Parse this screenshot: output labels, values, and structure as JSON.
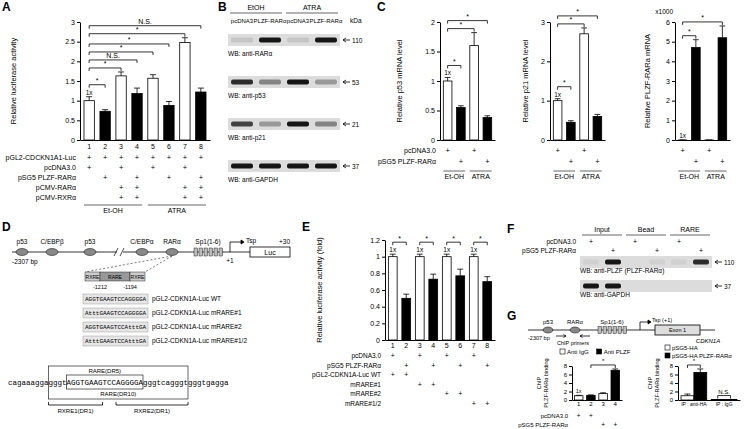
{
  "chart_data": [
    {
      "panel": "A",
      "type": "bar",
      "ylabel": "Relative luciferase activity",
      "ylim": [
        0,
        3
      ],
      "yticks": [
        0,
        0.5,
        1,
        1.5,
        2,
        2.5,
        3
      ],
      "categories": [
        "1",
        "2",
        "3",
        "4",
        "5",
        "6",
        "7",
        "8"
      ],
      "series": [
        {
          "values": [
            1,
            0.73,
            1.63,
            1.18,
            1.57,
            0.88,
            2.48,
            1.22
          ],
          "errors": [
            0.1,
            0.04,
            0.1,
            0.14,
            0.09,
            0.1,
            0.12,
            0.1
          ],
          "colors": [
            "#ffffff",
            "#000000",
            "#ffffff",
            "#000000",
            "#ffffff",
            "#000000",
            "#ffffff",
            "#000000"
          ],
          "value_labels": [
            "1x",
            null,
            null,
            null,
            null,
            null,
            null,
            null
          ]
        }
      ],
      "data_labels": true,
      "comparisons": [
        {
          "from": 0,
          "to": 1,
          "label": "*"
        },
        {
          "from": 0,
          "to": 2,
          "label": "*"
        },
        {
          "from": 0,
          "to": 3,
          "label": "N.S."
        },
        {
          "from": 0,
          "to": 4,
          "label": "*"
        },
        {
          "from": 0,
          "to": 5,
          "label": "*"
        },
        {
          "from": 0,
          "to": 6,
          "label": "*"
        },
        {
          "from": 0,
          "to": 7,
          "label": "N.S."
        }
      ],
      "conditions": [
        {
          "label": "pGL2-CDCKN1A1-Luc",
          "marks": [
            "+",
            "+",
            "+",
            "+",
            "+",
            "+",
            "+",
            "+"
          ]
        },
        {
          "label": "pcDNA3.0",
          "marks": [
            "+",
            null,
            "+",
            null,
            "+",
            null,
            "+",
            null
          ]
        },
        {
          "label": "pSG5 PLZF-RARα",
          "marks": [
            null,
            "+",
            null,
            "+",
            null,
            "+",
            null,
            "+"
          ]
        },
        {
          "label": "pCMV-RARα",
          "marks": [
            null,
            null,
            "+",
            "+",
            null,
            null,
            "+",
            "+"
          ]
        },
        {
          "label": "pCMV-RXRα",
          "marks": [
            null,
            null,
            "+",
            "+",
            null,
            null,
            "+",
            "+"
          ]
        }
      ],
      "groups": [
        {
          "label": "Et-OH",
          "from": 0,
          "to": 3
        },
        {
          "label": "ATRA",
          "from": 4,
          "to": 7
        }
      ]
    },
    {
      "panel": "C",
      "type": "bar",
      "ylabel": "Relative p53 mRNA level",
      "ylim": [
        0,
        2
      ],
      "yticks": [
        0,
        0.5,
        1,
        1.5,
        2
      ],
      "categories": [
        null,
        null,
        null,
        null
      ],
      "series": [
        {
          "values": [
            1,
            0.55,
            1.6,
            0.38
          ],
          "errors": [
            0.06,
            0.03,
            0.22,
            0.03
          ],
          "colors": [
            "#ffffff",
            "#000000",
            "#ffffff",
            "#000000"
          ],
          "value_labels": [
            "1x",
            null,
            null,
            null
          ]
        }
      ],
      "data_labels": true,
      "comparisons": [
        {
          "from": 0,
          "to": 1,
          "label": "*"
        },
        {
          "from": 0,
          "to": 2,
          "label": "*"
        },
        {
          "from": 0,
          "to": 3,
          "label": "*"
        }
      ],
      "conditions": [
        {
          "label": "pcDNA3.0",
          "marks": [
            "+",
            null,
            "+",
            null
          ]
        },
        {
          "label": "pSG5 PLZF-RARα",
          "marks": [
            null,
            "+",
            null,
            "+"
          ]
        }
      ],
      "groups": [
        {
          "label": "Et-OH",
          "from": 0,
          "to": 1
        },
        {
          "label": "ATRA",
          "from": 2,
          "to": 3
        }
      ]
    },
    {
      "type": "bar",
      "ylabel": "Relative p21 mRNA level",
      "ylim": [
        0,
        3
      ],
      "yticks": [
        0,
        1,
        2,
        3
      ],
      "categories": [
        null,
        null,
        null,
        null
      ],
      "series": [
        {
          "values": [
            1,
            0.45,
            2.7,
            0.6
          ],
          "errors": [
            0.05,
            0.04,
            0.15,
            0.05
          ],
          "colors": [
            "#ffffff",
            "#000000",
            "#ffffff",
            "#000000"
          ],
          "value_labels": [
            "1x",
            null,
            null,
            null
          ]
        }
      ],
      "data_labels": true,
      "comparisons": [
        {
          "from": 0,
          "to": 1,
          "label": "*"
        },
        {
          "from": 0,
          "to": 2,
          "label": "*"
        },
        {
          "from": 0,
          "to": 3,
          "label": "*"
        }
      ],
      "conditions": [
        {
          "marks": [
            "+",
            null,
            "+",
            null
          ]
        },
        {
          "marks": [
            null,
            "+",
            null,
            "+"
          ]
        }
      ],
      "groups": [
        {
          "label": "Et-OH",
          "from": 0,
          "to": 1
        },
        {
          "label": "ATRA",
          "from": 2,
          "to": 3
        }
      ]
    },
    {
      "type": "bar",
      "ylabel": "Relative PLZF-RARa mRNA",
      "unit_note": "x1000",
      "ylim": [
        0,
        6
      ],
      "yticks": [
        0,
        1,
        2,
        3,
        4,
        5,
        6
      ],
      "categories": [
        null,
        null,
        null,
        null
      ],
      "series": [
        {
          "values": [
            0.001,
            4.7,
            0.001,
            5.2
          ],
          "errors": [
            0,
            0.4,
            0,
            0.6
          ],
          "colors": [
            "#ffffff",
            "#000000",
            "#ffffff",
            "#000000"
          ],
          "value_labels": [
            "1x",
            null,
            null,
            null
          ]
        }
      ],
      "data_labels": true,
      "comparisons": [
        {
          "from": 0,
          "to": 1,
          "label": "*"
        },
        {
          "from": 0,
          "to": 3,
          "label": "*"
        }
      ],
      "conditions": [
        {
          "marks": [
            "+",
            null,
            "+",
            null
          ]
        },
        {
          "marks": [
            null,
            "+",
            null,
            "+"
          ]
        }
      ],
      "groups": [
        {
          "label": "Et-OH",
          "from": 0,
          "to": 1
        },
        {
          "label": "ATRA",
          "from": 2,
          "to": 3
        }
      ]
    },
    {
      "panel": "E",
      "type": "bar",
      "ylabel": "Relative luciferase activity (fold)",
      "ylim": [
        0,
        1.2
      ],
      "yticks": [
        0,
        0.2,
        0.4,
        0.6,
        0.8,
        1,
        1.2
      ],
      "categories": [
        "1",
        "2",
        "3",
        "4",
        "5",
        "6",
        "7",
        "8"
      ],
      "series": [
        {
          "values": [
            1,
            0.5,
            1,
            0.73,
            1,
            0.77,
            1,
            0.7
          ],
          "errors": [
            0.03,
            0.05,
            0.03,
            0.06,
            0.03,
            0.08,
            0.03,
            0.06
          ],
          "colors": [
            "#ffffff",
            "#000000",
            "#ffffff",
            "#000000",
            "#ffffff",
            "#000000",
            "#ffffff",
            "#000000"
          ],
          "value_labels": [
            "1x",
            null,
            "1x",
            null,
            "1x",
            null,
            "1x",
            null
          ]
        }
      ],
      "data_labels": true,
      "comparisons": [
        {
          "from": 0,
          "to": 1,
          "label": "*"
        },
        {
          "from": 2,
          "to": 3,
          "label": "*"
        },
        {
          "from": 4,
          "to": 5,
          "label": "*"
        },
        {
          "from": 6,
          "to": 7,
          "label": "*"
        }
      ],
      "conditions": [
        {
          "label": "pcDNA3.0",
          "marks": [
            "+",
            null,
            "+",
            null,
            "+",
            null,
            "+",
            null
          ]
        },
        {
          "label": "pSG5 PLZF-RARα",
          "marks": [
            null,
            "+",
            null,
            "+",
            null,
            "+",
            null,
            "+"
          ]
        },
        {
          "label": "pGL2-CDKN1A-Luc WT",
          "marks": [
            "+",
            "+",
            null,
            null,
            null,
            null,
            null,
            null
          ]
        },
        {
          "label": "mRARE#1",
          "marks": [
            null,
            null,
            "+",
            "+",
            null,
            null,
            null,
            null
          ]
        },
        {
          "label": "mRARE#2",
          "marks": [
            null,
            null,
            null,
            null,
            "+",
            "+",
            null,
            null
          ]
        },
        {
          "label": "mRARE#1/2",
          "marks": [
            null,
            null,
            null,
            null,
            null,
            null,
            "+",
            "+"
          ]
        }
      ]
    },
    {
      "panel": "G",
      "type": "bar",
      "ylabel": [
        "ChIP",
        "PLZF-RARα binding"
      ],
      "ylim": [
        0,
        8
      ],
      "yticks": [
        0,
        2,
        4,
        6,
        8
      ],
      "categories": [
        "1",
        "2",
        "3",
        "4"
      ],
      "series": [
        {
          "name": "Anti IgG",
          "color": "#ffffff",
          "values": [
            1,
            null,
            1.5,
            null
          ],
          "errors": [
            0.1,
            null,
            0.2,
            null
          ],
          "value_labels": [
            "1x",
            null,
            null,
            null
          ]
        },
        {
          "name": "Anti PLZF",
          "color": "#000000",
          "values": [
            null,
            1.1,
            null,
            7
          ],
          "errors": [
            null,
            0.1,
            null,
            0.3
          ]
        }
      ],
      "data_labels": true,
      "legend": "top",
      "comparisons": [
        {
          "from": 1,
          "to": 3,
          "label": "*"
        }
      ],
      "conditions": [
        {
          "label": "pcDNA3.0",
          "marks": [
            "+",
            "+",
            null,
            null
          ]
        },
        {
          "label": "pSG5 PLZF-RARα",
          "marks": [
            null,
            null,
            "+",
            "+"
          ]
        }
      ]
    },
    {
      "type": "bar",
      "ylabel": [
        "ChIP",
        "PLZF-RARα binding"
      ],
      "ylim": [
        0,
        8
      ],
      "yticks": [
        0,
        2,
        4,
        6,
        8
      ],
      "categories": [
        "IP : anti-HA",
        "IP : IgG"
      ],
      "series": [
        {
          "name": "pSG5-HA",
          "color": "#ffffff",
          "values": [
            1,
            0.1
          ],
          "errors": [
            0.4,
            null
          ]
        },
        {
          "name": "pSG5-HA PLZF-RARα",
          "color": "#000000",
          "values": [
            6.5,
            0.1
          ],
          "errors": [
            0.8,
            null
          ]
        }
      ],
      "legend": "top",
      "comparisons": [
        {
          "from": 0,
          "to": 0,
          "label": "*"
        },
        {
          "from": 1,
          "to": 1,
          "label": "N.S."
        }
      ]
    }
  ],
  "blots": [
    {
      "panel": "B",
      "groups": [
        {
          "label": "EtOH",
          "from": 0,
          "to": 1
        },
        {
          "label": "ATRA",
          "from": 2,
          "to": 3
        }
      ],
      "lanes": [
        "pcDNA3",
        "PLZF-RARα",
        "pcDNA3",
        "PLZF-RARα"
      ],
      "unit": "kDa",
      "rows": [
        {
          "label": "WB: anti-RARα",
          "marker": 110,
          "intensity": [
            0.1,
            0.9,
            0.1,
            0.9
          ]
        },
        {
          "label": "WB: anti-p53",
          "marker": 53,
          "intensity": [
            0.8,
            0.4,
            0.9,
            0.3
          ]
        },
        {
          "label": "WB: anti-p21",
          "marker": 21,
          "intensity": [
            0.7,
            0.3,
            0.9,
            0.4
          ]
        },
        {
          "label": "WB: anti-GAPDH",
          "marker": 37,
          "intensity": [
            0.9,
            0.9,
            0.9,
            0.9
          ]
        }
      ]
    },
    {
      "panel": "F",
      "groups": [
        {
          "label": "Input",
          "from": 0,
          "to": 1
        },
        {
          "label": "Bead",
          "from": 2,
          "to": 3
        },
        {
          "label": "RARE",
          "from": 4,
          "to": 5
        }
      ],
      "conditions": [
        {
          "label": "pcDNA3.0",
          "marks": [
            "+",
            null,
            "+",
            null,
            "+",
            null
          ]
        },
        {
          "label": "pSG5 PLZF-RARα",
          "marks": [
            null,
            "+",
            null,
            "+",
            null,
            "+"
          ]
        }
      ],
      "rows": [
        {
          "label": "WB: anti-PLZF (PLZF-RARα)",
          "marker": 110,
          "intensity": [
            0.05,
            0.9,
            0,
            0.05,
            0.05,
            0.8
          ]
        },
        {
          "label": "WB: anti-GAPDH",
          "marker": 37,
          "intensity": [
            0.9,
            0.9,
            0,
            0,
            0,
            0
          ]
        }
      ]
    }
  ],
  "diagrams": [
    {
      "panel": "D",
      "elements": [
        "p53",
        "C/EBPβ",
        "p53",
        "C/EBPα",
        "RARα"
      ],
      "sp1": "Sp1(1-6)",
      "start": "+1",
      "tsp": "Tsp",
      "end": "+30",
      "reporter": "Luc",
      "length": "-2307 bp",
      "sites": [
        "RXRE",
        "RARE",
        "RXRE"
      ],
      "positions": [
        "-1212",
        "-1194"
      ],
      "constructs": [
        {
          "name": "pGL2-CDKN1A-Luc WT",
          "sequence": "AGGTGAAGTCCAGGGGA"
        },
        {
          "name": "pGL2-CDKN1A-Luc mRARE#1",
          "sequence": "AtttGAAGTCCAGGGGA"
        },
        {
          "name": "pGL2-CDKN1A-Luc mRARE#2",
          "sequence": "AGGTGAAGTCCAtttGA"
        },
        {
          "name": "pGL2-CDKN1A-Luc mRARE#1/2",
          "sequence": "AtttGAAGTCCAtttGA"
        }
      ],
      "sequence": "cagaaaggagggtAGGTGAAGTCCAGGGGAgggtcagggtgggtgagga",
      "sequence_elements": [
        "RARE(DR5)",
        "RARE(DR10)",
        "RXRE1(DR1)",
        "RXRE2(DR1)"
      ]
    },
    {
      "panel": "G",
      "elements": [
        "p53",
        "RARα"
      ],
      "sp1": "Sp1(1-6)",
      "tsp": "Tsp (+1)",
      "length": "-2307 bp",
      "primers": "ChIP primers",
      "exon": "Exon 1",
      "gene": "CDKN1A"
    }
  ]
}
